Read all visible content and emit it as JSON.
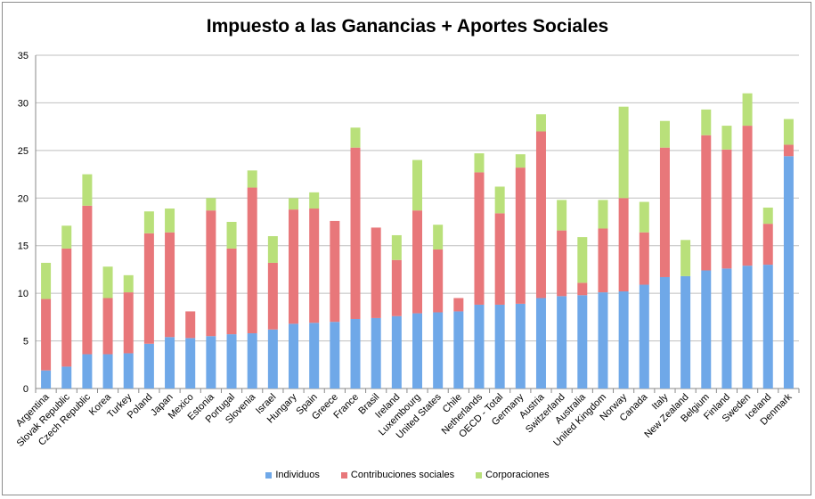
{
  "chart_data": {
    "type": "bar",
    "stacked": true,
    "title": "Impuesto a las Ganancias + Aportes Sociales",
    "xlabel": "",
    "ylabel": "",
    "ylim": [
      0,
      35
    ],
    "yticks": [
      0,
      5,
      10,
      15,
      20,
      25,
      30,
      35
    ],
    "grid": true,
    "legend_position": "bottom",
    "categories": [
      "Argentina",
      "Slovak Republic",
      "Czech Republic",
      "Korea",
      "Turkey",
      "Poland",
      "Japan",
      "Mexico",
      "Estonia",
      "Portugal",
      "Slovenia",
      "Israel",
      "Hungary",
      "Spain",
      "Greece",
      "France",
      "Brasil",
      "Ireland",
      "Luxembourg",
      "United States",
      "Chile",
      "Netherlands",
      "OECD - Total",
      "Germany",
      "Austria",
      "Switzerland",
      "Australia",
      "United Kingdom",
      "Norway",
      "Canada",
      "Italy",
      "New Zealand",
      "Belgium",
      "Finland",
      "Sweden",
      "Iceland",
      "Denmark"
    ],
    "series": [
      {
        "name": "Individuos",
        "color": "#6fa8e8",
        "values": [
          1.9,
          2.3,
          3.6,
          3.6,
          3.7,
          4.7,
          5.4,
          5.3,
          5.5,
          5.7,
          5.8,
          6.2,
          6.8,
          6.9,
          7.0,
          7.3,
          7.4,
          7.6,
          7.9,
          8.0,
          8.1,
          8.8,
          8.8,
          8.9,
          9.5,
          9.7,
          9.8,
          10.1,
          10.2,
          10.9,
          11.7,
          11.8,
          12.4,
          12.6,
          12.9,
          13.0,
          24.4
        ]
      },
      {
        "name": "Contribuciones sociales",
        "color": "#e8777a",
        "values": [
          7.5,
          12.4,
          15.6,
          5.9,
          6.4,
          11.6,
          11.0,
          2.8,
          13.2,
          9.0,
          15.3,
          7.0,
          12.0,
          12.0,
          10.6,
          18.0,
          9.5,
          5.9,
          10.8,
          6.6,
          1.4,
          13.9,
          9.6,
          14.3,
          17.5,
          6.9,
          1.3,
          6.7,
          9.8,
          5.5,
          13.6,
          0.0,
          14.2,
          12.5,
          14.7,
          4.3,
          1.2
        ]
      },
      {
        "name": "Corporaciones",
        "color": "#b9e07a",
        "values": [
          3.8,
          2.4,
          3.3,
          3.3,
          1.8,
          2.3,
          2.5,
          0.0,
          1.3,
          2.8,
          1.8,
          2.8,
          1.2,
          1.7,
          0.0,
          2.1,
          0.0,
          2.6,
          5.3,
          2.6,
          0.0,
          2.0,
          2.8,
          1.4,
          1.8,
          3.2,
          4.8,
          3.0,
          9.6,
          3.2,
          2.8,
          3.8,
          2.7,
          2.5,
          3.4,
          1.7,
          2.7
        ]
      }
    ]
  }
}
